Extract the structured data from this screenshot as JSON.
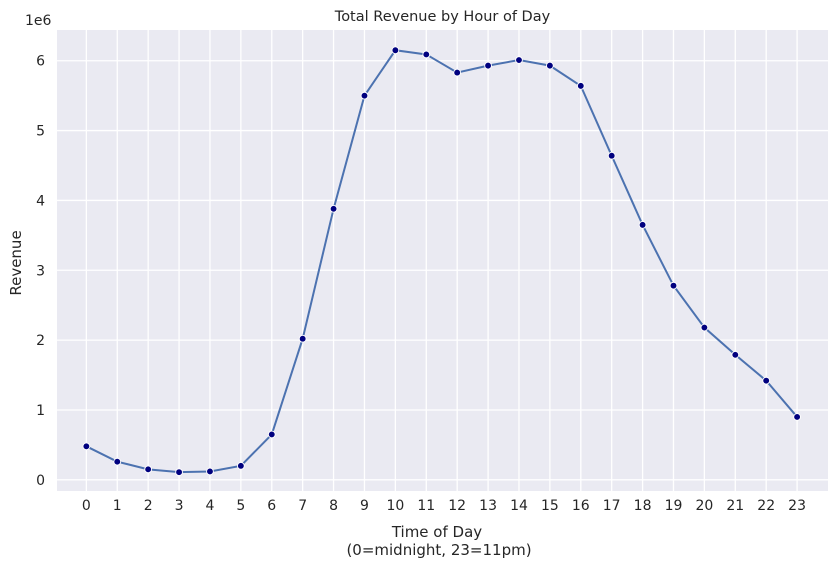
{
  "chart_data": {
    "type": "line",
    "title": "Total Revenue by Hour of Day",
    "xlabel_line1": "Time of Day",
    "xlabel_line2": "(0=midnight, 23=11pm)",
    "ylabel": "Revenue",
    "y_offset_label": "1e6",
    "x": [
      0,
      1,
      2,
      3,
      4,
      5,
      6,
      7,
      8,
      9,
      10,
      11,
      12,
      13,
      14,
      15,
      16,
      17,
      18,
      19,
      20,
      21,
      22,
      23
    ],
    "values": [
      480000,
      260000,
      150000,
      110000,
      120000,
      200000,
      650000,
      2020000,
      3880000,
      5500000,
      6150000,
      6090000,
      5830000,
      5930000,
      6010000,
      5930000,
      5640000,
      4640000,
      3650000,
      2780000,
      2180000,
      1790000,
      1420000,
      900000
    ],
    "xlim": [
      -0.95,
      24.0
    ],
    "ylim": [
      -160000,
      6440000
    ],
    "y_ticks": [
      0,
      1000000,
      2000000,
      3000000,
      4000000,
      5000000,
      6000000
    ],
    "y_tick_labels": [
      "0",
      "1",
      "2",
      "3",
      "4",
      "5",
      "6"
    ],
    "x_tick_labels": [
      "0",
      "1",
      "2",
      "3",
      "4",
      "5",
      "6",
      "7",
      "8",
      "9",
      "10",
      "11",
      "12",
      "13",
      "14",
      "15",
      "16",
      "17",
      "18",
      "19",
      "20",
      "21",
      "22",
      "23"
    ],
    "grid": true,
    "line_color": "#4c72b0",
    "marker_color": "#00007f",
    "background_color": "#eaeaf2"
  }
}
